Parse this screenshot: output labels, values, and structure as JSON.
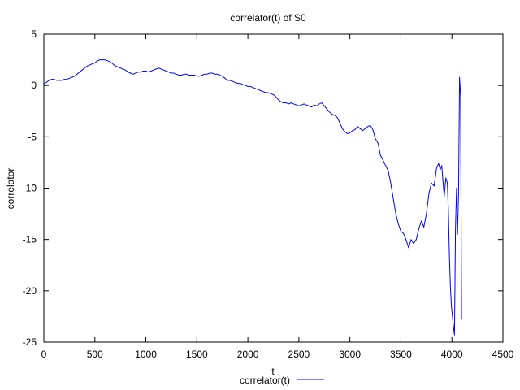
{
  "chart_data": {
    "type": "line",
    "title": "correlator(t) of S0",
    "xlabel": "t",
    "ylabel": "correlator",
    "xlim": [
      0,
      4500
    ],
    "ylim": [
      -25,
      5
    ],
    "xticks": [
      0,
      500,
      1000,
      1500,
      2000,
      2500,
      3000,
      3500,
      4000,
      4500
    ],
    "yticks": [
      5,
      0,
      -5,
      -10,
      -15,
      -20,
      -25
    ],
    "grid": false,
    "legend": "bottom-center",
    "series": [
      {
        "name": "correlator(t)",
        "color": "#0000ff",
        "points": [
          [
            0,
            0.1
          ],
          [
            25,
            0.3
          ],
          [
            50,
            0.5
          ],
          [
            75,
            0.6
          ],
          [
            100,
            0.6
          ],
          [
            125,
            0.5
          ],
          [
            150,
            0.5
          ],
          [
            175,
            0.5
          ],
          [
            200,
            0.6
          ],
          [
            225,
            0.6
          ],
          [
            250,
            0.7
          ],
          [
            275,
            0.8
          ],
          [
            300,
            0.9
          ],
          [
            325,
            1.1
          ],
          [
            350,
            1.3
          ],
          [
            375,
            1.5
          ],
          [
            400,
            1.7
          ],
          [
            425,
            1.9
          ],
          [
            450,
            2.0
          ],
          [
            475,
            2.1
          ],
          [
            500,
            2.2
          ],
          [
            525,
            2.4
          ],
          [
            550,
            2.5
          ],
          [
            575,
            2.5
          ],
          [
            600,
            2.5
          ],
          [
            625,
            2.4
          ],
          [
            650,
            2.3
          ],
          [
            675,
            2.1
          ],
          [
            700,
            1.9
          ],
          [
            725,
            1.8
          ],
          [
            750,
            1.7
          ],
          [
            775,
            1.6
          ],
          [
            800,
            1.5
          ],
          [
            825,
            1.3
          ],
          [
            850,
            1.2
          ],
          [
            875,
            1.1
          ],
          [
            900,
            1.2
          ],
          [
            925,
            1.3
          ],
          [
            950,
            1.3
          ],
          [
            975,
            1.4
          ],
          [
            1000,
            1.4
          ],
          [
            1025,
            1.3
          ],
          [
            1050,
            1.4
          ],
          [
            1075,
            1.5
          ],
          [
            1100,
            1.6
          ],
          [
            1125,
            1.7
          ],
          [
            1150,
            1.6
          ],
          [
            1175,
            1.5
          ],
          [
            1200,
            1.4
          ],
          [
            1225,
            1.3
          ],
          [
            1250,
            1.2
          ],
          [
            1275,
            1.2
          ],
          [
            1300,
            1.1
          ],
          [
            1325,
            1.0
          ],
          [
            1350,
            1.0
          ],
          [
            1375,
            1.1
          ],
          [
            1400,
            1.1
          ],
          [
            1425,
            1.0
          ],
          [
            1450,
            1.0
          ],
          [
            1475,
            1.0
          ],
          [
            1500,
            0.9
          ],
          [
            1525,
            0.9
          ],
          [
            1550,
            1.0
          ],
          [
            1575,
            1.1
          ],
          [
            1600,
            1.1
          ],
          [
            1625,
            1.2
          ],
          [
            1650,
            1.2
          ],
          [
            1675,
            1.1
          ],
          [
            1700,
            1.1
          ],
          [
            1725,
            1.0
          ],
          [
            1750,
            0.9
          ],
          [
            1775,
            0.7
          ],
          [
            1800,
            0.5
          ],
          [
            1825,
            0.5
          ],
          [
            1850,
            0.4
          ],
          [
            1875,
            0.3
          ],
          [
            1900,
            0.2
          ],
          [
            1925,
            0.2
          ],
          [
            1950,
            0.1
          ],
          [
            1975,
            0.0
          ],
          [
            2000,
            -0.1
          ],
          [
            2025,
            -0.1
          ],
          [
            2050,
            -0.2
          ],
          [
            2075,
            -0.3
          ],
          [
            2100,
            -0.4
          ],
          [
            2125,
            -0.5
          ],
          [
            2150,
            -0.6
          ],
          [
            2175,
            -0.7
          ],
          [
            2200,
            -0.7
          ],
          [
            2225,
            -0.8
          ],
          [
            2250,
            -0.9
          ],
          [
            2275,
            -1.1
          ],
          [
            2300,
            -1.4
          ],
          [
            2325,
            -1.6
          ],
          [
            2350,
            -1.7
          ],
          [
            2375,
            -1.7
          ],
          [
            2400,
            -1.8
          ],
          [
            2425,
            -1.7
          ],
          [
            2450,
            -1.8
          ],
          [
            2475,
            -1.9
          ],
          [
            2500,
            -2.0
          ],
          [
            2525,
            -1.9
          ],
          [
            2550,
            -1.8
          ],
          [
            2575,
            -1.9
          ],
          [
            2600,
            -2.0
          ],
          [
            2625,
            -2.1
          ],
          [
            2650,
            -1.9
          ],
          [
            2675,
            -2.0
          ],
          [
            2700,
            -1.8
          ],
          [
            2725,
            -1.7
          ],
          [
            2750,
            -2.0
          ],
          [
            2775,
            -2.3
          ],
          [
            2800,
            -2.6
          ],
          [
            2825,
            -2.8
          ],
          [
            2850,
            -2.9
          ],
          [
            2875,
            -3.1
          ],
          [
            2900,
            -3.6
          ],
          [
            2925,
            -4.2
          ],
          [
            2950,
            -4.5
          ],
          [
            2975,
            -4.7
          ],
          [
            3000,
            -4.6
          ],
          [
            3025,
            -4.4
          ],
          [
            3050,
            -4.3
          ],
          [
            3075,
            -4.0
          ],
          [
            3100,
            -4.2
          ],
          [
            3125,
            -4.4
          ],
          [
            3150,
            -4.2
          ],
          [
            3175,
            -4.0
          ],
          [
            3200,
            -3.9
          ],
          [
            3225,
            -4.3
          ],
          [
            3250,
            -5.2
          ],
          [
            3275,
            -5.6
          ],
          [
            3300,
            -6.8
          ],
          [
            3325,
            -7.3
          ],
          [
            3350,
            -7.8
          ],
          [
            3375,
            -8.3
          ],
          [
            3400,
            -9.5
          ],
          [
            3425,
            -11.0
          ],
          [
            3450,
            -12.5
          ],
          [
            3475,
            -13.5
          ],
          [
            3500,
            -14.2
          ],
          [
            3525,
            -14.4
          ],
          [
            3550,
            -15.0
          ],
          [
            3575,
            -15.8
          ],
          [
            3600,
            -15.0
          ],
          [
            3625,
            -15.4
          ],
          [
            3650,
            -15.0
          ],
          [
            3675,
            -14.0
          ],
          [
            3700,
            -13.2
          ],
          [
            3725,
            -13.8
          ],
          [
            3750,
            -12.5
          ],
          [
            3775,
            -10.5
          ],
          [
            3800,
            -9.5
          ],
          [
            3825,
            -9.8
          ],
          [
            3850,
            -8.0
          ],
          [
            3870,
            -7.6
          ],
          [
            3885,
            -8.2
          ],
          [
            3900,
            -7.8
          ],
          [
            3915,
            -9.6
          ],
          [
            3925,
            -10.8
          ],
          [
            3940,
            -9.0
          ],
          [
            3955,
            -9.5
          ],
          [
            3965,
            -12.0
          ],
          [
            3975,
            -16.5
          ],
          [
            3985,
            -19.5
          ],
          [
            3995,
            -21.5
          ],
          [
            4005,
            -22.5
          ],
          [
            4015,
            -23.5
          ],
          [
            4025,
            -24.3
          ],
          [
            4035,
            -14.0
          ],
          [
            4045,
            -10.0
          ],
          [
            4055,
            -14.5
          ],
          [
            4065,
            -10.5
          ],
          [
            4075,
            0.8
          ],
          [
            4085,
            -1.0
          ],
          [
            4095,
            -22.8
          ]
        ]
      }
    ]
  }
}
